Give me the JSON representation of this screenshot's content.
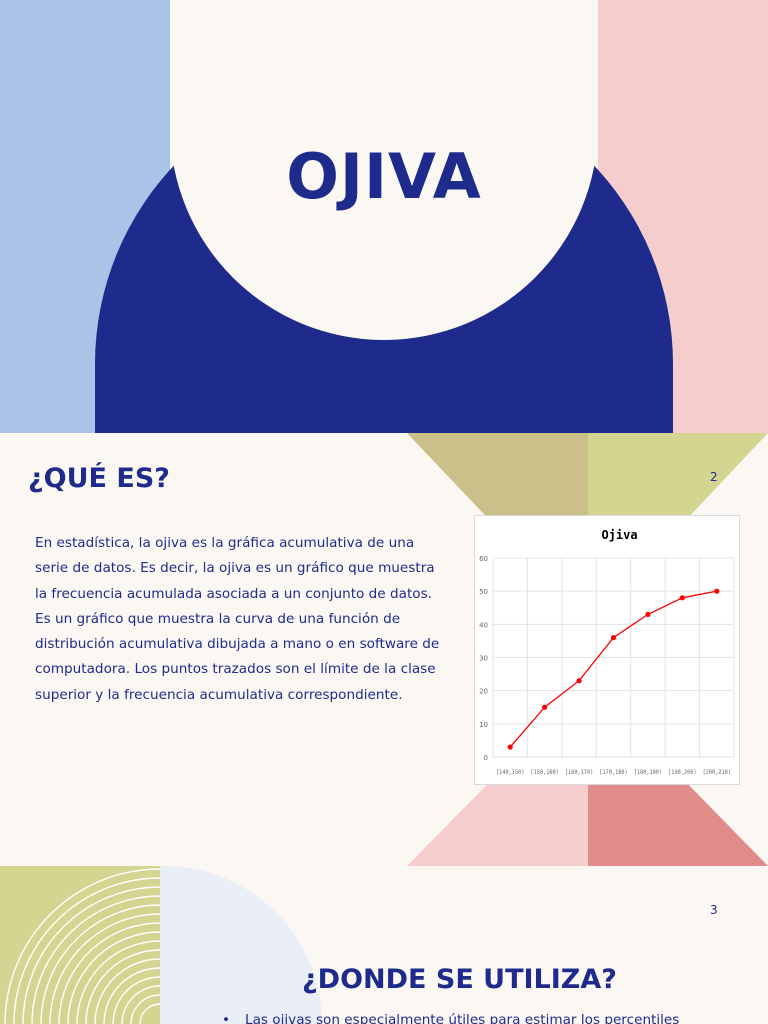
{
  "slide1": {
    "title": "OJIVA",
    "colors": {
      "navy": "#1f2b8c",
      "blue": "#aac4e8",
      "pink": "#f5cdcd",
      "cream": "#fbf7f3"
    }
  },
  "slide2": {
    "heading": "¿QUÉ ES?",
    "page_number": "2",
    "body": "En estadística, la ojiva es la gráfica acumulativa de una serie de datos. Es decir, la ojiva es un gráfico que muestra la frecuencia acumulada asociada a un conjunto de datos. Es un gráfico que muestra la curva de una función de distribución acumulativa dibujada a mano o en software de computadora. Los puntos trazados son el límite de la clase superior y la frecuencia acumulativa correspondiente."
  },
  "slide3": {
    "page_number": "3",
    "heading": "¿DONDE SE UTILIZA?",
    "bullet_symbol": "•",
    "bullet_text": "Las ojivas son especialmente útiles para estimar los percentiles"
  },
  "chart_data": {
    "type": "line",
    "title": "Ojiva",
    "categories": [
      "[140,150)",
      "[150,160)",
      "[160,170)",
      "[170,180)",
      "[180,190)",
      "[190,200)",
      "[200,210)"
    ],
    "series": [
      {
        "values": [
          3,
          15,
          23,
          36,
          43,
          48,
          50
        ],
        "color": "#ff0000"
      }
    ],
    "ylim": [
      0,
      60
    ],
    "yticks": [
      "0",
      "10",
      "20",
      "30",
      "40",
      "50",
      "60"
    ],
    "grid": true
  }
}
